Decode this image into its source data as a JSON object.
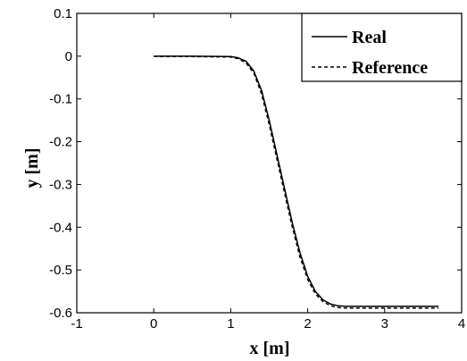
{
  "chart_data": {
    "type": "line",
    "xlabel": "x [m]",
    "ylabel": "y [m]",
    "xlim": [
      -1,
      4
    ],
    "ylim": [
      -0.6,
      0.1
    ],
    "xticks": [
      -1,
      0,
      1,
      2,
      3,
      4
    ],
    "xtick_labels": [
      "-1",
      "0",
      "1",
      "2",
      "3",
      "4"
    ],
    "yticks": [
      0.1,
      0,
      -0.1,
      -0.2,
      -0.3,
      -0.4,
      -0.5,
      -0.6
    ],
    "ytick_labels": [
      "0.1",
      "0",
      "-0.1",
      "-0.2",
      "-0.3",
      "-0.4",
      "-0.5",
      "-0.6"
    ],
    "grid": false,
    "legend_position": "top-right",
    "series": [
      {
        "name": "Real",
        "style": "solid",
        "color": "#000000",
        "x": [
          0,
          0.5,
          1.0,
          1.1,
          1.2,
          1.3,
          1.4,
          1.5,
          1.6,
          1.7,
          1.8,
          1.9,
          2.0,
          2.1,
          2.2,
          2.3,
          2.4,
          2.5,
          3.0,
          3.5,
          3.7
        ],
        "y": [
          0,
          0,
          -0.001,
          -0.004,
          -0.012,
          -0.035,
          -0.08,
          -0.15,
          -0.23,
          -0.31,
          -0.39,
          -0.46,
          -0.515,
          -0.55,
          -0.57,
          -0.58,
          -0.584,
          -0.585,
          -0.585,
          -0.585,
          -0.585
        ]
      },
      {
        "name": "Reference",
        "style": "dashed",
        "color": "#000000",
        "x": [
          0,
          0.5,
          1.0,
          1.1,
          1.2,
          1.3,
          1.4,
          1.5,
          1.6,
          1.7,
          1.8,
          1.9,
          2.0,
          2.1,
          2.2,
          2.3,
          2.4,
          2.5,
          3.0,
          3.5,
          3.7
        ],
        "y": [
          -0.001,
          -0.001,
          -0.002,
          -0.006,
          -0.016,
          -0.04,
          -0.088,
          -0.16,
          -0.24,
          -0.32,
          -0.4,
          -0.47,
          -0.522,
          -0.556,
          -0.574,
          -0.584,
          -0.588,
          -0.589,
          -0.589,
          -0.589,
          -0.589
        ]
      }
    ]
  }
}
